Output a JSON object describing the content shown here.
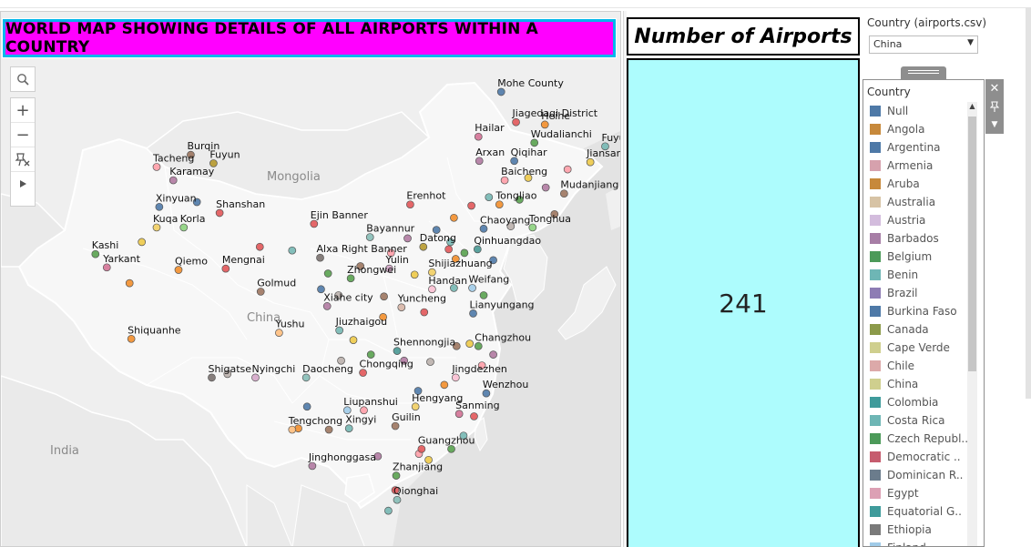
{
  "map": {
    "title": "WORLD MAP SHOWING DETAILS OF ALL AIRPORTS WITHIN A COUNTRY",
    "region_labels": [
      {
        "text": "Mongolia",
        "x": 103,
        "y": 47
      },
      {
        "text": "China",
        "x": 103,
        "y": 34
      },
      {
        "text": "India",
        "x": 79,
        "y": 23
      }
    ],
    "cities": [
      {
        "name": "Mohe County",
        "lon": 122.4,
        "lat": 52.9,
        "color": "#4e79a7"
      },
      {
        "name": "Jiagedaqi District",
        "lon": 124.1,
        "lat": 50.4,
        "color": "#e15759"
      },
      {
        "name": "Heihe",
        "lon": 127.4,
        "lat": 50.2,
        "color": "#f28e2b"
      },
      {
        "name": "Hailar",
        "lon": 119.8,
        "lat": 49.2,
        "color": "#d37295"
      },
      {
        "name": "Wudalianchi",
        "lon": 126.2,
        "lat": 48.7,
        "color": "#59a14f"
      },
      {
        "name": "Fuyuan",
        "lon": 134.3,
        "lat": 48.4,
        "color": "#76b7b2"
      },
      {
        "name": "Arxan",
        "lon": 119.9,
        "lat": 47.2,
        "color": "#b07aa1"
      },
      {
        "name": "Qiqihar",
        "lon": 123.9,
        "lat": 47.2,
        "color": "#4e79a7"
      },
      {
        "name": "Jiansanjiang",
        "lon": 132.6,
        "lat": 47.1,
        "color": "#edc948"
      },
      {
        "name": "Baicheng",
        "lon": 122.8,
        "lat": 45.6,
        "color": "#ff9da7"
      },
      {
        "name": "Mudanjiang",
        "lon": 129.6,
        "lat": 44.5,
        "color": "#9c755f"
      },
      {
        "name": "Tongliao",
        "lon": 122.2,
        "lat": 43.6,
        "color": "#f28e2b"
      },
      {
        "name": "Tonghua",
        "lon": 126.0,
        "lat": 41.7,
        "color": "#8cd17d"
      },
      {
        "name": "Erenhot",
        "lon": 112.0,
        "lat": 43.6,
        "color": "#e15759"
      },
      {
        "name": "Chaoyang",
        "lon": 120.4,
        "lat": 41.6,
        "color": "#4e79a7"
      },
      {
        "name": "Datong",
        "lon": 113.5,
        "lat": 40.1,
        "color": "#b6992d"
      },
      {
        "name": "Qinhuangdao",
        "lon": 119.7,
        "lat": 39.9,
        "color": "#499894"
      },
      {
        "name": "Bayannur",
        "lon": 107.4,
        "lat": 40.9,
        "color": "#86bcb6"
      },
      {
        "name": "Ejin Banner",
        "lon": 101.0,
        "lat": 42.0,
        "color": "#e15759"
      },
      {
        "name": "Alxa Right Banner",
        "lon": 101.7,
        "lat": 39.2,
        "color": "#79706e"
      },
      {
        "name": "Yulin",
        "lon": 109.6,
        "lat": 38.3,
        "color": "#d4a6c8"
      },
      {
        "name": "Shijiazhuang",
        "lon": 114.5,
        "lat": 38.0,
        "color": "#f1ce63"
      },
      {
        "name": "Zhongwei",
        "lon": 105.2,
        "lat": 37.5,
        "color": "#59a14f"
      },
      {
        "name": "Handan",
        "lon": 114.5,
        "lat": 36.6,
        "color": "#fabfd2"
      },
      {
        "name": "Weifang",
        "lon": 119.1,
        "lat": 36.7,
        "color": "#a0cbe8"
      },
      {
        "name": "Yuncheng",
        "lon": 111.0,
        "lat": 35.1,
        "color": "#d7b5a6"
      },
      {
        "name": "Lianyungang",
        "lon": 119.2,
        "lat": 34.6,
        "color": "#4e79a7"
      },
      {
        "name": "Xiahe city",
        "lon": 102.5,
        "lat": 35.2,
        "color": "#b07aa1"
      },
      {
        "name": "Jiuzhaigou",
        "lon": 103.9,
        "lat": 33.2,
        "color": "#76b7b2"
      },
      {
        "name": "Yushu",
        "lon": 97.0,
        "lat": 33.0,
        "color": "#ffbe7d"
      },
      {
        "name": "Golmud",
        "lon": 94.9,
        "lat": 36.4,
        "color": "#9d7660"
      },
      {
        "name": "Mengnai",
        "lon": 90.9,
        "lat": 38.3,
        "color": "#e15759"
      },
      {
        "name": "Qiemo",
        "lon": 85.5,
        "lat": 38.2,
        "color": "#f28e2b"
      },
      {
        "name": "Yarkant",
        "lon": 77.3,
        "lat": 38.4,
        "color": "#d37295"
      },
      {
        "name": "Kashi",
        "lon": 76.0,
        "lat": 39.5,
        "color": "#59a14f"
      },
      {
        "name": "Kuqa",
        "lon": 83.0,
        "lat": 41.7,
        "color": "#f1ce63"
      },
      {
        "name": "Korla",
        "lon": 86.1,
        "lat": 41.7,
        "color": "#8cd17d"
      },
      {
        "name": "Xinyuan",
        "lon": 83.3,
        "lat": 43.4,
        "color": "#4e79a7"
      },
      {
        "name": "Shanshan",
        "lon": 90.2,
        "lat": 42.9,
        "color": "#e15759"
      },
      {
        "name": "Karamay",
        "lon": 84.9,
        "lat": 45.6,
        "color": "#b07aa1"
      },
      {
        "name": "Tacheng",
        "lon": 83.0,
        "lat": 46.7,
        "color": "#ff9da7"
      },
      {
        "name": "Burqin",
        "lon": 86.9,
        "lat": 47.7,
        "color": "#9c755f"
      },
      {
        "name": "Fuyun",
        "lon": 89.5,
        "lat": 47.0,
        "color": "#b6992d"
      },
      {
        "name": "Shiquanhe",
        "lon": 80.1,
        "lat": 32.5,
        "color": "#f28e2b"
      },
      {
        "name": "Shigatse",
        "lon": 89.3,
        "lat": 29.3,
        "color": "#79706e"
      },
      {
        "name": "Nyingchi",
        "lon": 94.3,
        "lat": 29.3,
        "color": "#d4a6c8"
      },
      {
        "name": "Daocheng",
        "lon": 100.1,
        "lat": 29.3,
        "color": "#86bcb6"
      },
      {
        "name": "Chongqing",
        "lon": 106.6,
        "lat": 29.7,
        "color": "#e15759"
      },
      {
        "name": "Shennongjia",
        "lon": 110.5,
        "lat": 31.5,
        "color": "#499894"
      },
      {
        "name": "Changzhou",
        "lon": 119.8,
        "lat": 31.9,
        "color": "#59a14f"
      },
      {
        "name": "Jingdezhen",
        "lon": 117.2,
        "lat": 29.3,
        "color": "#fabfd2"
      },
      {
        "name": "Wenzhou",
        "lon": 120.7,
        "lat": 28.0,
        "color": "#4e79a7"
      },
      {
        "name": "Liupanshui",
        "lon": 104.8,
        "lat": 26.6,
        "color": "#a0cbe8"
      },
      {
        "name": "Hengyang",
        "lon": 112.6,
        "lat": 26.9,
        "color": "#f1ce63"
      },
      {
        "name": "Sanming",
        "lon": 117.6,
        "lat": 26.3,
        "color": "#d37295"
      },
      {
        "name": "Xingyi",
        "lon": 105.0,
        "lat": 25.1,
        "color": "#76b7b2"
      },
      {
        "name": "Guilin",
        "lon": 110.3,
        "lat": 25.3,
        "color": "#9c755f"
      },
      {
        "name": "Tengchong",
        "lon": 98.5,
        "lat": 25.0,
        "color": "#ffbe7d"
      },
      {
        "name": "Guangzhou",
        "lon": 113.3,
        "lat": 23.4,
        "color": "#e15759"
      },
      {
        "name": "Jinghonggasa",
        "lon": 100.8,
        "lat": 22.0,
        "color": "#b07aa1"
      },
      {
        "name": "Zhanjiang",
        "lon": 110.4,
        "lat": 21.2,
        "color": "#59a14f"
      },
      {
        "name": "Qionghai",
        "lon": 110.5,
        "lat": 19.2,
        "color": "#86bcb6"
      }
    ],
    "extra_points": [
      {
        "lon": 115.0,
        "lat": 41.5,
        "color": "#4e79a7"
      },
      {
        "lon": 117.0,
        "lat": 42.5,
        "color": "#f28e2b"
      },
      {
        "lon": 119.0,
        "lat": 43.5,
        "color": "#e15759"
      },
      {
        "lon": 121.0,
        "lat": 44.2,
        "color": "#76b7b2"
      },
      {
        "lon": 124.5,
        "lat": 44.0,
        "color": "#59a14f"
      },
      {
        "lon": 125.5,
        "lat": 45.8,
        "color": "#edc948"
      },
      {
        "lon": 127.5,
        "lat": 45.0,
        "color": "#b07aa1"
      },
      {
        "lon": 130.0,
        "lat": 46.5,
        "color": "#ff9da7"
      },
      {
        "lon": 128.5,
        "lat": 42.8,
        "color": "#9c755f"
      },
      {
        "lon": 123.5,
        "lat": 41.8,
        "color": "#bab0ac"
      },
      {
        "lon": 121.5,
        "lat": 39.0,
        "color": "#4e79a7"
      },
      {
        "lon": 117.2,
        "lat": 39.1,
        "color": "#f28e2b"
      },
      {
        "lon": 116.4,
        "lat": 39.9,
        "color": "#e15759"
      },
      {
        "lon": 116.6,
        "lat": 40.5,
        "color": "#76b7b2"
      },
      {
        "lon": 118.2,
        "lat": 39.6,
        "color": "#59a14f"
      },
      {
        "lon": 112.5,
        "lat": 37.8,
        "color": "#edc948"
      },
      {
        "lon": 111.7,
        "lat": 40.8,
        "color": "#b07aa1"
      },
      {
        "lon": 109.8,
        "lat": 39.6,
        "color": "#ff9da7"
      },
      {
        "lon": 106.3,
        "lat": 38.5,
        "color": "#9c755f"
      },
      {
        "lon": 103.8,
        "lat": 36.1,
        "color": "#bab0ac"
      },
      {
        "lon": 101.8,
        "lat": 36.6,
        "color": "#4e79a7"
      },
      {
        "lon": 108.9,
        "lat": 34.3,
        "color": "#f28e2b"
      },
      {
        "lon": 113.6,
        "lat": 34.7,
        "color": "#e15759"
      },
      {
        "lon": 117.0,
        "lat": 36.7,
        "color": "#76b7b2"
      },
      {
        "lon": 120.4,
        "lat": 36.1,
        "color": "#59a14f"
      },
      {
        "lon": 118.8,
        "lat": 32.1,
        "color": "#edc948"
      },
      {
        "lon": 121.5,
        "lat": 31.2,
        "color": "#b07aa1"
      },
      {
        "lon": 120.2,
        "lat": 30.3,
        "color": "#ff9da7"
      },
      {
        "lon": 117.3,
        "lat": 31.9,
        "color": "#9c755f"
      },
      {
        "lon": 114.3,
        "lat": 30.6,
        "color": "#bab0ac"
      },
      {
        "lon": 112.9,
        "lat": 28.2,
        "color": "#4e79a7"
      },
      {
        "lon": 115.9,
        "lat": 28.7,
        "color": "#f28e2b"
      },
      {
        "lon": 119.3,
        "lat": 26.1,
        "color": "#e15759"
      },
      {
        "lon": 118.1,
        "lat": 24.5,
        "color": "#76b7b2"
      },
      {
        "lon": 116.7,
        "lat": 23.4,
        "color": "#59a14f"
      },
      {
        "lon": 114.1,
        "lat": 22.5,
        "color": "#edc948"
      },
      {
        "lon": 108.3,
        "lat": 22.8,
        "color": "#b07aa1"
      },
      {
        "lon": 106.7,
        "lat": 26.6,
        "color": "#ff9da7"
      },
      {
        "lon": 102.7,
        "lat": 25.0,
        "color": "#9c755f"
      },
      {
        "lon": 104.1,
        "lat": 30.7,
        "color": "#bab0ac"
      },
      {
        "lon": 100.2,
        "lat": 26.9,
        "color": "#4e79a7"
      },
      {
        "lon": 99.2,
        "lat": 25.1,
        "color": "#f28e2b"
      },
      {
        "lon": 110.3,
        "lat": 20.0,
        "color": "#e15759"
      },
      {
        "lon": 109.5,
        "lat": 18.3,
        "color": "#76b7b2"
      },
      {
        "lon": 107.5,
        "lat": 31.2,
        "color": "#59a14f"
      },
      {
        "lon": 105.5,
        "lat": 32.4,
        "color": "#edc948"
      },
      {
        "lon": 111.3,
        "lat": 30.7,
        "color": "#b07aa1"
      },
      {
        "lon": 113.0,
        "lat": 23.0,
        "color": "#ff9da7"
      },
      {
        "lon": 109.0,
        "lat": 36.0,
        "color": "#9c755f"
      },
      {
        "lon": 91.1,
        "lat": 29.6,
        "color": "#bab0ac"
      },
      {
        "lon": 87.6,
        "lat": 43.8,
        "color": "#4e79a7"
      },
      {
        "lon": 79.9,
        "lat": 37.1,
        "color": "#f28e2b"
      },
      {
        "lon": 94.8,
        "lat": 40.1,
        "color": "#e15759"
      },
      {
        "lon": 98.5,
        "lat": 39.8,
        "color": "#76b7b2"
      },
      {
        "lon": 102.6,
        "lat": 37.9,
        "color": "#59a14f"
      },
      {
        "lon": 81.3,
        "lat": 40.5,
        "color": "#edc948"
      }
    ]
  },
  "zoom_controls": {
    "search_icon": "magnifier-icon",
    "zoom_in": "+",
    "zoom_out": "−",
    "pin_icon": "pin-cross-icon",
    "expand_icon": "triangle-right-icon"
  },
  "kpi": {
    "title": "Number of Airports",
    "value": "241",
    "box_color": "#adfcfd"
  },
  "filter": {
    "label": "Country (airports.csv)",
    "selected": "China"
  },
  "legend": {
    "title": "Country",
    "items": [
      {
        "label": "Null",
        "color": "#4e79a7"
      },
      {
        "label": "Angola",
        "color": "#c7893b"
      },
      {
        "label": "Argentina",
        "color": "#4e79a7"
      },
      {
        "label": "Armenia",
        "color": "#d6a1ad"
      },
      {
        "label": "Aruba",
        "color": "#c7893b"
      },
      {
        "label": "Australia",
        "color": "#d7c3a5"
      },
      {
        "label": "Austria",
        "color": "#d3bcdd"
      },
      {
        "label": "Barbados",
        "color": "#a77ea6"
      },
      {
        "label": "Belgium",
        "color": "#4c9a59"
      },
      {
        "label": "Benin",
        "color": "#6eb6b5"
      },
      {
        "label": "Brazil",
        "color": "#8d7cb4"
      },
      {
        "label": "Burkina Faso",
        "color": "#4e79a7"
      },
      {
        "label": "Canada",
        "color": "#8c9a4a"
      },
      {
        "label": "Cape Verde",
        "color": "#cfcf8e"
      },
      {
        "label": "Chile",
        "color": "#dca9a9"
      },
      {
        "label": "China",
        "color": "#cfcf8e"
      },
      {
        "label": "Colombia",
        "color": "#3f9b9b"
      },
      {
        "label": "Costa Rica",
        "color": "#6eb6b5"
      },
      {
        "label": "Czech Republ..",
        "color": "#4c9a59"
      },
      {
        "label": "Democratic ..",
        "color": "#c65c6e"
      },
      {
        "label": "Dominican R..",
        "color": "#6b7c8c"
      },
      {
        "label": "Egypt",
        "color": "#dca0b4"
      },
      {
        "label": "Equatorial G..",
        "color": "#3f9b9b"
      },
      {
        "label": "Ethiopia",
        "color": "#7a7a7a"
      },
      {
        "label": "Finland",
        "color": "#a0cbe8"
      }
    ]
  }
}
